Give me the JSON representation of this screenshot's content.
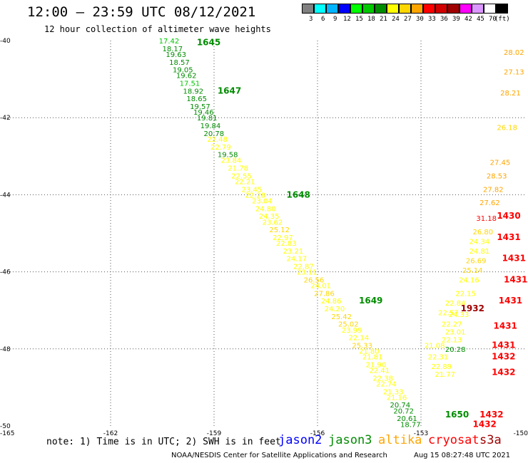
{
  "header": {
    "title": "12:00 — 23:59 UTC 08/12/2021",
    "subtitle": "12 hour collection of altimeter wave heights"
  },
  "colorscale": {
    "unit": "(ft)",
    "levels": [
      {
        "label": "3",
        "color": "#808080"
      },
      {
        "label": "6",
        "color": "#00ffff"
      },
      {
        "label": "9",
        "color": "#00b4ff"
      },
      {
        "label": "12",
        "color": "#0000ff"
      },
      {
        "label": "15",
        "color": "#00ff00"
      },
      {
        "label": "18",
        "color": "#00c800"
      },
      {
        "label": "21",
        "color": "#008c00"
      },
      {
        "label": "24",
        "color": "#ffff00"
      },
      {
        "label": "27",
        "color": "#ffd700"
      },
      {
        "label": "30",
        "color": "#ffa500"
      },
      {
        "label": "33",
        "color": "#ff0000"
      },
      {
        "label": "36",
        "color": "#d20000"
      },
      {
        "label": "39",
        "color": "#a00000"
      },
      {
        "label": "42",
        "color": "#ff00ff"
      },
      {
        "label": "45",
        "color": "#dc96ff"
      },
      {
        "label": "70",
        "color": "#ffffff"
      },
      {
        "label": "",
        "color": "#000000"
      }
    ]
  },
  "map": {
    "lat_labels": [
      "-40",
      "-42",
      "-44",
      "-46",
      "-48",
      "-50"
    ],
    "lon_labels": [
      "-165",
      "-162",
      "-159",
      "-156",
      "-153",
      "-150"
    ],
    "lon_range": [
      -165,
      -150
    ],
    "lat_range": [
      -40,
      -50
    ]
  },
  "tracks": [
    {
      "name": "jason3-track",
      "points": [
        {
          "lon": -160.6,
          "lat": -40.0,
          "v": "17.42",
          "c": "#00c800"
        },
        {
          "lon": -160.5,
          "lat": -40.2,
          "v": "18.17",
          "c": "#008c00"
        },
        {
          "lon": -160.4,
          "lat": -40.35,
          "v": "19.63",
          "c": "#008c00"
        },
        {
          "lon": -160.3,
          "lat": -40.55,
          "v": "18.57",
          "c": "#008c00"
        },
        {
          "lon": -160.2,
          "lat": -40.75,
          "v": "19.05",
          "c": "#008c00"
        },
        {
          "lon": -160.1,
          "lat": -40.9,
          "v": "19.62",
          "c": "#008c00"
        },
        {
          "lon": -160.0,
          "lat": -41.1,
          "v": "17.51",
          "c": "#00c800"
        },
        {
          "lon": -159.9,
          "lat": -41.3,
          "v": "18.92",
          "c": "#008c00"
        },
        {
          "lon": -159.8,
          "lat": -41.5,
          "v": "18.65",
          "c": "#008c00"
        },
        {
          "lon": -159.7,
          "lat": -41.7,
          "v": "19.57",
          "c": "#008c00"
        },
        {
          "lon": -159.6,
          "lat": -41.85,
          "v": "19.46",
          "c": "#008c00"
        },
        {
          "lon": -159.5,
          "lat": -42.0,
          "v": "19.81",
          "c": "#008c00"
        },
        {
          "lon": -159.4,
          "lat": -42.2,
          "v": "19.84",
          "c": "#008c00"
        },
        {
          "lon": -159.3,
          "lat": -42.4,
          "v": "20.78",
          "c": "#008c00"
        },
        {
          "lon": -159.2,
          "lat": -42.55,
          "v": "22.48",
          "c": "#ffff00"
        },
        {
          "lon": -159.1,
          "lat": -42.75,
          "v": "22.79",
          "c": "#ffff00"
        },
        {
          "lon": -158.9,
          "lat": -42.95,
          "v": "19.58",
          "c": "#008c00"
        },
        {
          "lon": -158.8,
          "lat": -43.1,
          "v": "23.84",
          "c": "#ffff00"
        },
        {
          "lon": -158.6,
          "lat": -43.3,
          "v": "21.78",
          "c": "#ffff00"
        },
        {
          "lon": -158.5,
          "lat": -43.5,
          "v": "22.55",
          "c": "#ffff00"
        },
        {
          "lon": -158.4,
          "lat": -43.65,
          "v": "22.21",
          "c": "#ffff00"
        },
        {
          "lon": -158.2,
          "lat": -43.85,
          "v": "23.45",
          "c": "#ffff00"
        },
        {
          "lon": -158.1,
          "lat": -44.0,
          "v": "22.28",
          "c": "#ffff00"
        },
        {
          "lon": -157.9,
          "lat": -44.15,
          "v": "23.04",
          "c": "#ffff00"
        },
        {
          "lon": -157.8,
          "lat": -44.35,
          "v": "24.80",
          "c": "#ffff00"
        },
        {
          "lon": -157.7,
          "lat": -44.55,
          "v": "24.35",
          "c": "#ffff00"
        },
        {
          "lon": -157.6,
          "lat": -44.7,
          "v": "23.62",
          "c": "#ffff00"
        },
        {
          "lon": -157.4,
          "lat": -44.9,
          "v": "25.12",
          "c": "#ffd700"
        },
        {
          "lon": -157.3,
          "lat": -45.1,
          "v": "22.97",
          "c": "#ffff00"
        },
        {
          "lon": -157.2,
          "lat": -45.25,
          "v": "22.83",
          "c": "#ffff00"
        },
        {
          "lon": -157.0,
          "lat": -45.45,
          "v": "23.21",
          "c": "#ffff00"
        },
        {
          "lon": -156.9,
          "lat": -45.65,
          "v": "24.17",
          "c": "#ffff00"
        },
        {
          "lon": -156.7,
          "lat": -45.85,
          "v": "22.87",
          "c": "#ffff00"
        },
        {
          "lon": -156.6,
          "lat": -46.0,
          "v": "23.11",
          "c": "#ffff00"
        },
        {
          "lon": -156.4,
          "lat": -46.2,
          "v": "26.56",
          "c": "#ffd700"
        },
        {
          "lon": -156.2,
          "lat": -46.35,
          "v": "24.01",
          "c": "#ffff00"
        },
        {
          "lon": -156.1,
          "lat": -46.55,
          "v": "27.86",
          "c": "#ffd700"
        },
        {
          "lon": -155.9,
          "lat": -46.75,
          "v": "24.86",
          "c": "#ffff00"
        },
        {
          "lon": -155.8,
          "lat": -46.95,
          "v": "24.20",
          "c": "#ffff00"
        },
        {
          "lon": -155.6,
          "lat": -47.15,
          "v": "25.42",
          "c": "#ffd700"
        },
        {
          "lon": -155.4,
          "lat": -47.35,
          "v": "25.02",
          "c": "#ffd700"
        },
        {
          "lon": -155.3,
          "lat": -47.5,
          "v": "23.99",
          "c": "#ffff00"
        },
        {
          "lon": -155.1,
          "lat": -47.7,
          "v": "22.14",
          "c": "#ffff00"
        },
        {
          "lon": -155.0,
          "lat": -47.9,
          "v": "25.33",
          "c": "#ffd700"
        },
        {
          "lon": -154.8,
          "lat": -48.05,
          "v": "21.80",
          "c": "#ffff00"
        },
        {
          "lon": -154.7,
          "lat": -48.2,
          "v": "21.81",
          "c": "#ffff00"
        },
        {
          "lon": -154.6,
          "lat": -48.4,
          "v": "21.90",
          "c": "#ffff00"
        },
        {
          "lon": -154.5,
          "lat": -48.55,
          "v": "22.41",
          "c": "#ffff00"
        },
        {
          "lon": -154.4,
          "lat": -48.75,
          "v": "22.38",
          "c": "#ffff00"
        },
        {
          "lon": -154.3,
          "lat": -48.9,
          "v": "22.74",
          "c": "#ffff00"
        },
        {
          "lon": -154.1,
          "lat": -49.1,
          "v": "21.33",
          "c": "#ffff00"
        },
        {
          "lon": -154.0,
          "lat": -49.25,
          "v": "21.16",
          "c": "#ffff00"
        },
        {
          "lon": -153.9,
          "lat": -49.45,
          "v": "20.74",
          "c": "#008c00"
        },
        {
          "lon": -153.8,
          "lat": -49.6,
          "v": "20.72",
          "c": "#008c00"
        },
        {
          "lon": -153.7,
          "lat": -49.8,
          "v": "20.61",
          "c": "#008c00"
        },
        {
          "lon": -153.6,
          "lat": -49.95,
          "v": "18.77",
          "c": "#008c00"
        }
      ]
    },
    {
      "name": "altika-track",
      "points": [
        {
          "lon": -152.9,
          "lat": -47.9,
          "v": "21.08",
          "c": "#ffff00"
        },
        {
          "lon": -152.8,
          "lat": -48.2,
          "v": "22.31",
          "c": "#ffff00"
        },
        {
          "lon": -152.7,
          "lat": -48.45,
          "v": "22.89",
          "c": "#ffff00"
        },
        {
          "lon": -152.6,
          "lat": -48.65,
          "v": "21.77",
          "c": "#ffff00"
        },
        {
          "lon": -152.4,
          "lat": -47.75,
          "v": "22.13",
          "c": "#ffff00"
        },
        {
          "lon": -152.3,
          "lat": -48.0,
          "v": "20.28",
          "c": "#008c00"
        },
        {
          "lon": -152.4,
          "lat": -47.35,
          "v": "22.27",
          "c": "#ffff00"
        },
        {
          "lon": -152.3,
          "lat": -47.55,
          "v": "23.01",
          "c": "#ffff00"
        },
        {
          "lon": -152.5,
          "lat": -47.05,
          "v": "22.57",
          "c": "#ffff00"
        },
        {
          "lon": -152.2,
          "lat": -47.1,
          "v": "24.33",
          "c": "#ffff00"
        },
        {
          "lon": -152.3,
          "lat": -46.8,
          "v": "22.84",
          "c": "#ffff00"
        },
        {
          "lon": -152.0,
          "lat": -46.55,
          "v": "22.15",
          "c": "#ffff00"
        },
        {
          "lon": -151.9,
          "lat": -46.2,
          "v": "24.16",
          "c": "#ffff00"
        },
        {
          "lon": -151.8,
          "lat": -45.95,
          "v": "25.14",
          "c": "#ffd700"
        },
        {
          "lon": -151.7,
          "lat": -45.7,
          "v": "26.69",
          "c": "#ffd700"
        },
        {
          "lon": -151.6,
          "lat": -45.45,
          "v": "24.81",
          "c": "#ffff00"
        },
        {
          "lon": -151.6,
          "lat": -45.2,
          "v": "24.34",
          "c": "#ffff00"
        },
        {
          "lon": -151.5,
          "lat": -44.95,
          "v": "26.80",
          "c": "#ffd700"
        },
        {
          "lon": -151.4,
          "lat": -44.6,
          "v": "31.18",
          "c": "#ff0000"
        },
        {
          "lon": -151.3,
          "lat": -44.2,
          "v": "27.62",
          "c": "#ffa500"
        },
        {
          "lon": -151.2,
          "lat": -43.85,
          "v": "27.82",
          "c": "#ffa500"
        },
        {
          "lon": -151.1,
          "lat": -43.5,
          "v": "28.53",
          "c": "#ffa500"
        },
        {
          "lon": -151.0,
          "lat": -43.15,
          "v": "27.45",
          "c": "#ffa500"
        },
        {
          "lon": -150.8,
          "lat": -42.25,
          "v": "26.18",
          "c": "#ffd700"
        },
        {
          "lon": -150.7,
          "lat": -41.35,
          "v": "28.21",
          "c": "#ffa500"
        },
        {
          "lon": -150.6,
          "lat": -40.8,
          "v": "27.13",
          "c": "#ffa500"
        },
        {
          "lon": -150.6,
          "lat": -40.3,
          "v": "28.02",
          "c": "#ffa500"
        }
      ]
    }
  ],
  "time_labels": [
    {
      "lon": -159.5,
      "lat": -40.05,
      "t": "1645",
      "c": "#008c00"
    },
    {
      "lon": -158.9,
      "lat": -41.3,
      "t": "1647",
      "c": "#008c00"
    },
    {
      "lon": -156.9,
      "lat": -44.0,
      "t": "1648",
      "c": "#008c00"
    },
    {
      "lon": -154.8,
      "lat": -46.75,
      "t": "1649",
      "c": "#008c00"
    },
    {
      "lon": -152.3,
      "lat": -49.7,
      "t": "1650",
      "c": "#008c00"
    },
    {
      "lon": -151.85,
      "lat": -46.95,
      "t": "1932",
      "c": "#a00000"
    },
    {
      "lon": -150.8,
      "lat": -44.55,
      "t": "1430",
      "c": "#ff0000"
    },
    {
      "lon": -150.8,
      "lat": -45.1,
      "t": "1431",
      "c": "#ff0000"
    },
    {
      "lon": -150.65,
      "lat": -45.65,
      "t": "1431",
      "c": "#ff0000"
    },
    {
      "lon": -150.6,
      "lat": -46.2,
      "t": "1431",
      "c": "#ff0000"
    },
    {
      "lon": -150.75,
      "lat": -46.75,
      "t": "1431",
      "c": "#ff0000"
    },
    {
      "lon": -150.9,
      "lat": -47.4,
      "t": "1431",
      "c": "#ff0000"
    },
    {
      "lon": -150.95,
      "lat": -47.9,
      "t": "1431",
      "c": "#ff0000"
    },
    {
      "lon": -150.95,
      "lat": -48.2,
      "t": "1432",
      "c": "#ff0000"
    },
    {
      "lon": -150.95,
      "lat": -48.6,
      "t": "1432",
      "c": "#ff0000"
    },
    {
      "lon": -151.3,
      "lat": -49.7,
      "t": "1432",
      "c": "#ff0000"
    },
    {
      "lon": -151.5,
      "lat": -49.95,
      "t": "1432",
      "c": "#ff0000"
    }
  ],
  "note": "note: 1) Time is in UTC; 2) SWH is in feet",
  "satellites": [
    {
      "name": "jason2",
      "color": "#0000ff"
    },
    {
      "name": "jason3",
      "color": "#008c00"
    },
    {
      "name": "altika",
      "color": "#ffa500"
    },
    {
      "name": "cryosat",
      "color": "#ff0000"
    },
    {
      "name": "s3a",
      "color": "#a00000"
    }
  ],
  "footer": {
    "credit": "NOAA/NESDIS Center for Satellite Applications and Research",
    "timestamp": "Aug 15 08:27:48 UTC 2021"
  }
}
